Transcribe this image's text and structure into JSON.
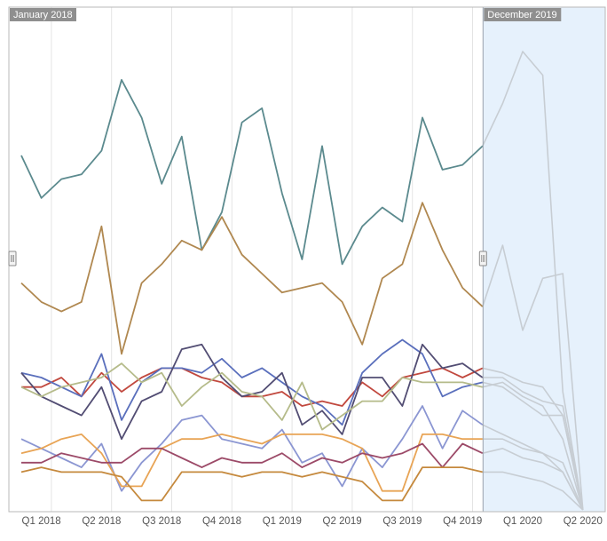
{
  "range": {
    "start_label": "January 2018",
    "end_label": "December 2019"
  },
  "colors": {
    "selection_fill": "#e6f1fc",
    "label_bg": "#8f8f8f",
    "label_text": "#ffffff",
    "grid": "#e4e4e4",
    "frame": "#b9b9b9",
    "ghost_series": "#c7cdd3"
  },
  "chart_data": {
    "type": "line",
    "title": "",
    "xlabel": "",
    "ylabel": "",
    "grid": true,
    "selection": {
      "start": "2018-01",
      "end": "2019-12"
    },
    "x_tick_labels": [
      "Q1 2018",
      "Q2 2018",
      "Q3 2018",
      "Q4 2018",
      "Q1 2019",
      "Q2 2019",
      "Q3 2019",
      "Q4 2019",
      "Q1 2020",
      "Q2 2020"
    ],
    "categories": [
      "2018-01",
      "2018-02",
      "2018-03",
      "2018-04",
      "2018-05",
      "2018-06",
      "2018-07",
      "2018-08",
      "2018-09",
      "2018-10",
      "2018-11",
      "2018-12",
      "2019-01",
      "2019-02",
      "2019-03",
      "2019-04",
      "2019-05",
      "2019-06",
      "2019-07",
      "2019-08",
      "2019-09",
      "2019-10",
      "2019-11",
      "2019-12",
      "2020-01",
      "2020-02",
      "2020-03",
      "2020-04",
      "2020-05"
    ],
    "ylim": [
      0,
      100
    ],
    "series": [
      {
        "color": "#5b8a8e",
        "values": [
          75,
          66,
          70,
          71,
          76,
          91,
          83,
          69,
          79,
          55,
          63,
          82,
          85,
          67,
          53,
          77,
          52,
          60,
          64,
          61,
          83,
          72,
          73,
          77,
          86,
          97,
          92,
          25,
          0
        ]
      },
      {
        "color": "#b08850",
        "values": [
          48,
          44,
          42,
          44,
          60,
          33,
          48,
          52,
          57,
          55,
          62,
          54,
          50,
          46,
          47,
          48,
          44,
          35,
          49,
          52,
          65,
          55,
          47,
          43,
          56,
          38,
          49,
          50,
          0
        ]
      },
      {
        "color": "#c1483e",
        "values": [
          26,
          26,
          28,
          24,
          29,
          25,
          28,
          30,
          30,
          28,
          27,
          24,
          24,
          25,
          22,
          23,
          22,
          27,
          24,
          28,
          29,
          30,
          28,
          30,
          29,
          27,
          26,
          20,
          0
        ]
      },
      {
        "color": "#5a6fbc",
        "values": [
          29,
          28,
          26,
          24,
          33,
          19,
          27,
          30,
          30,
          29,
          32,
          28,
          30,
          27,
          24,
          22,
          18,
          29,
          33,
          36,
          33,
          24,
          26,
          27,
          26,
          23,
          20,
          20,
          0
        ]
      },
      {
        "color": "#524d73",
        "values": [
          29,
          24,
          22,
          20,
          26,
          15,
          23,
          25,
          34,
          35,
          28,
          24,
          25,
          29,
          18,
          21,
          16,
          28,
          28,
          22,
          35,
          30,
          31,
          28,
          28,
          25,
          23,
          22,
          0
        ]
      },
      {
        "color": "#b5bb8a",
        "values": [
          26,
          24,
          26,
          27,
          28,
          31,
          27,
          29,
          22,
          26,
          29,
          25,
          24,
          19,
          27,
          17,
          20,
          23,
          23,
          28,
          27,
          27,
          27,
          26,
          27,
          24,
          22,
          15,
          0
        ]
      },
      {
        "color": "#8b96d2",
        "values": [
          15,
          13,
          11,
          9,
          14,
          4,
          10,
          14,
          19,
          20,
          15,
          14,
          13,
          17,
          10,
          12,
          5,
          13,
          9,
          15,
          22,
          13,
          21,
          18,
          16,
          14,
          12,
          10,
          0
        ]
      },
      {
        "color": "#e8a455",
        "values": [
          12,
          13,
          15,
          16,
          12,
          5,
          5,
          13,
          15,
          15,
          16,
          15,
          14,
          16,
          16,
          16,
          15,
          13,
          4,
          4,
          16,
          16,
          15,
          15,
          15,
          13,
          12,
          8,
          0
        ]
      },
      {
        "color": "#9c4a68",
        "values": [
          10,
          10,
          12,
          11,
          10,
          10,
          13,
          13,
          11,
          9,
          11,
          10,
          10,
          12,
          9,
          11,
          10,
          12,
          11,
          12,
          14,
          9,
          14,
          12,
          13,
          11,
          10,
          8,
          0
        ]
      },
      {
        "color": "#c5893d",
        "values": [
          8,
          9,
          8,
          8,
          8,
          7,
          2,
          2,
          8,
          8,
          8,
          7,
          8,
          8,
          7,
          8,
          7,
          6,
          2,
          2,
          9,
          9,
          9,
          8,
          8,
          7,
          6,
          4,
          0
        ]
      }
    ]
  }
}
